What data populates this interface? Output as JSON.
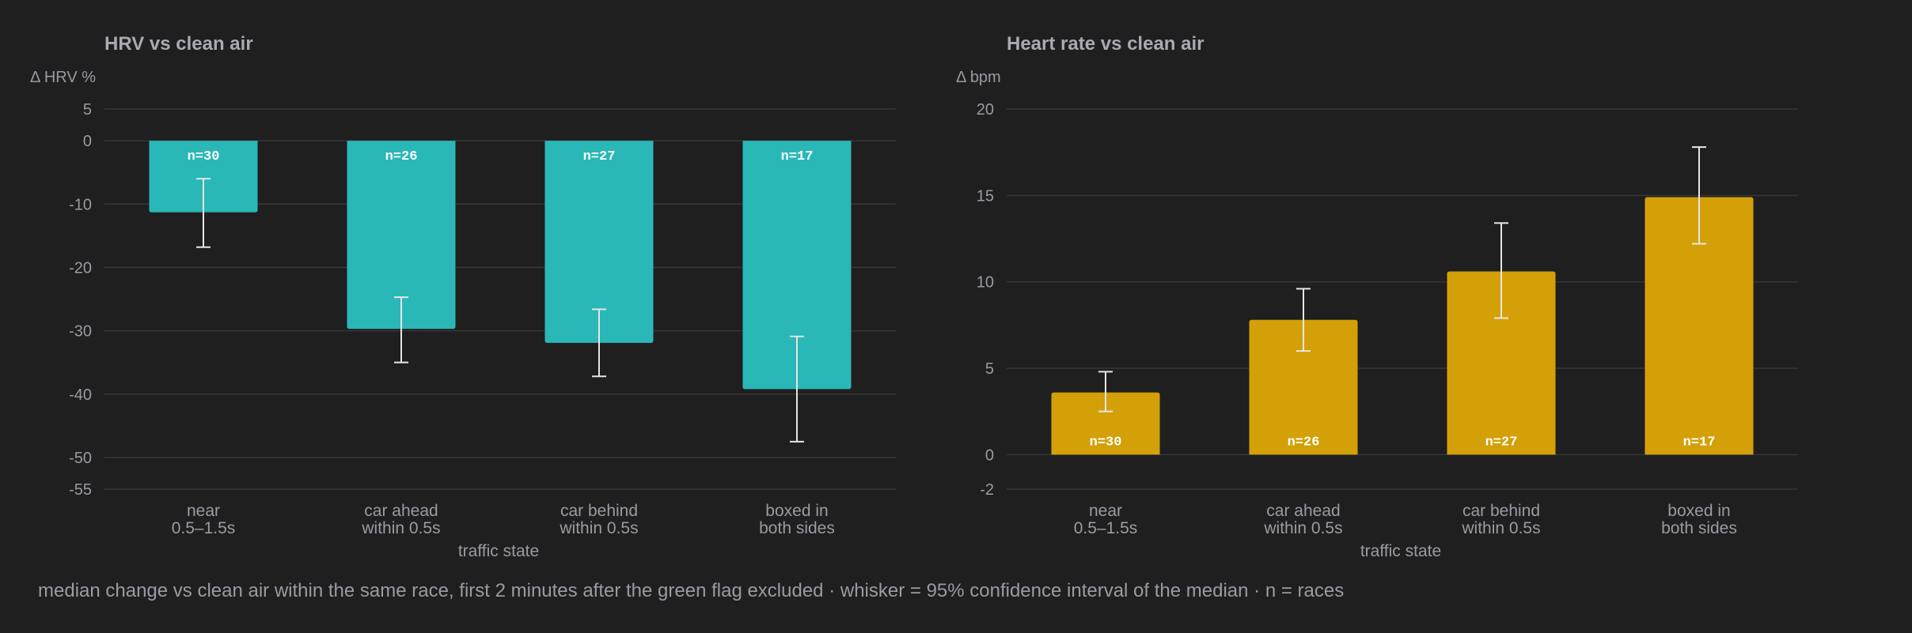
{
  "caption": "median change vs clean air within the same race, first 2 minutes after the green flag excluded · whisker = 95% confidence interval of the median · n = races",
  "chart_data": [
    {
      "type": "bar",
      "title": "HRV vs clean air",
      "ylabel": "Δ HRV %",
      "xlabel": "traffic state",
      "ylim": [
        -55,
        5
      ],
      "yticks": [
        5,
        0,
        -10,
        -20,
        -30,
        -40,
        -50,
        -55
      ],
      "grid": true,
      "color": "#2ab7b8",
      "categories": [
        [
          "near",
          "0.5–1.5s"
        ],
        [
          "car ahead",
          "within 0.5s"
        ],
        [
          "car behind",
          "within 0.5s"
        ],
        [
          "boxed in",
          "both sides"
        ]
      ],
      "values": [
        -11.3,
        -29.7,
        -31.9,
        -39.2
      ],
      "ci_low": [
        -16.8,
        -35.0,
        -37.2,
        -47.5
      ],
      "ci_high": [
        -6.0,
        -24.7,
        -26.6,
        -30.9
      ],
      "labels": [
        "n=30",
        "n=26",
        "n=27",
        "n=17"
      ],
      "label_position": "top"
    },
    {
      "type": "bar",
      "title": "Heart rate vs clean air",
      "ylabel": "Δ bpm",
      "xlabel": "traffic state",
      "ylim": [
        -2,
        20
      ],
      "yticks": [
        20,
        15,
        10,
        5,
        0,
        -2
      ],
      "grid": true,
      "color": "#d4a008",
      "categories": [
        [
          "near",
          "0.5–1.5s"
        ],
        [
          "car ahead",
          "within 0.5s"
        ],
        [
          "car behind",
          "within 0.5s"
        ],
        [
          "boxed in",
          "both sides"
        ]
      ],
      "values": [
        3.6,
        7.8,
        10.6,
        14.9
      ],
      "ci_low": [
        2.5,
        6.0,
        7.9,
        12.2
      ],
      "ci_high": [
        4.8,
        9.6,
        13.4,
        17.8
      ],
      "labels": [
        "n=30",
        "n=26",
        "n=27",
        "n=17"
      ],
      "label_position": "bottom"
    }
  ]
}
